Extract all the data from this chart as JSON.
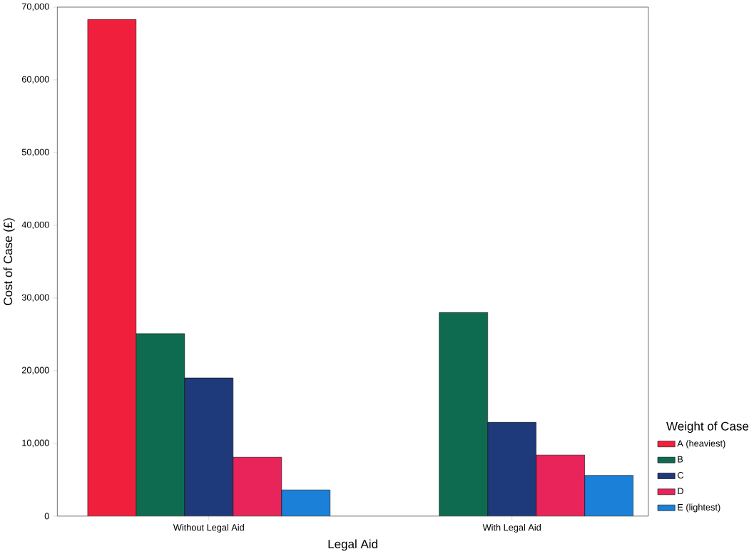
{
  "chart_data": {
    "type": "bar",
    "xlabel": "Legal Aid",
    "ylabel": "Cost of Case (£)",
    "legend_title": "Weight of Case",
    "legend": "right",
    "categories": [
      "Without Legal Aid",
      "With Legal Aid"
    ],
    "series": [
      {
        "name": "A (heaviest)",
        "color": "#f0203c",
        "values": [
          68300,
          null
        ]
      },
      {
        "name": "B",
        "color": "#0f6b50",
        "values": [
          25100,
          28000
        ]
      },
      {
        "name": "C",
        "color": "#1f3a7a",
        "values": [
          19000,
          12900
        ]
      },
      {
        "name": "D",
        "color": "#e8245a",
        "values": [
          8100,
          8400
        ]
      },
      {
        "name": "E (lightest)",
        "color": "#1a80d8",
        "values": [
          3600,
          5600
        ]
      }
    ],
    "ylim": [
      0,
      70000
    ],
    "yticks": [
      {
        "value": 0,
        "label": "0"
      },
      {
        "value": 10000,
        "label": "10,000"
      },
      {
        "value": 20000,
        "label": "20,000"
      },
      {
        "value": 30000,
        "label": "30,000"
      },
      {
        "value": 40000,
        "label": "40,000"
      },
      {
        "value": 50000,
        "label": "50,000"
      },
      {
        "value": 60000,
        "label": "60,000"
      },
      {
        "value": 70000,
        "label": "70,000"
      }
    ]
  }
}
